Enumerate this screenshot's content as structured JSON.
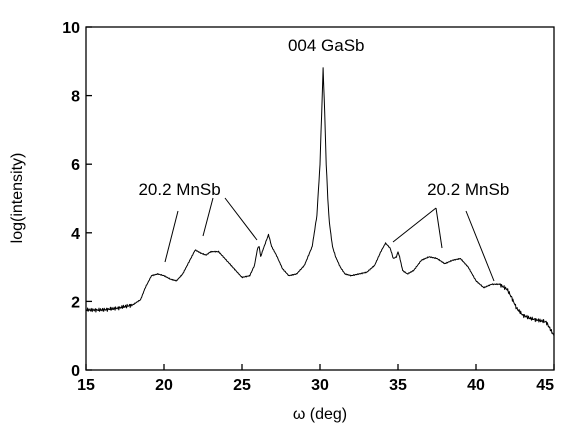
{
  "chart_data": {
    "type": "line",
    "title": "",
    "xlabel": "ω (deg)",
    "ylabel": "log(intensity)",
    "xlim": [
      15,
      45
    ],
    "ylim": [
      0,
      10
    ],
    "xticks": [
      15,
      20,
      25,
      30,
      35,
      40,
      45
    ],
    "yticks": [
      0,
      2,
      4,
      6,
      8,
      10
    ],
    "grid": false,
    "legend": "none",
    "series": [
      {
        "color": "#000000",
        "x": [
          15.0,
          16.0,
          17.0,
          18.0,
          18.5,
          18.8,
          19.2,
          19.6,
          20.0,
          20.4,
          20.8,
          21.2,
          21.6,
          22.0,
          22.4,
          22.7,
          23.0,
          23.5,
          24.0,
          24.5,
          25.0,
          25.5,
          25.8,
          26.0,
          26.1,
          26.2,
          26.3,
          26.5,
          26.7,
          26.9,
          27.2,
          27.6,
          28.0,
          28.5,
          29.0,
          29.5,
          29.8,
          30.0,
          30.2,
          30.3,
          30.4,
          30.5,
          30.6,
          30.8,
          31.0,
          31.3,
          31.6,
          32.0,
          32.5,
          33.0,
          33.5,
          33.9,
          34.2,
          34.5,
          34.7,
          34.9,
          35.0,
          35.1,
          35.3,
          35.6,
          36.0,
          36.5,
          37.0,
          37.5,
          38.0,
          38.5,
          39.0,
          39.5,
          40.0,
          40.5,
          41.0,
          41.5,
          42.0,
          42.3,
          42.6,
          43.0,
          43.5,
          44.0,
          44.5,
          45.0
        ],
        "values": [
          1.75,
          1.75,
          1.8,
          1.9,
          2.05,
          2.4,
          2.75,
          2.8,
          2.75,
          2.65,
          2.6,
          2.8,
          3.15,
          3.5,
          3.4,
          3.35,
          3.45,
          3.45,
          3.2,
          2.95,
          2.7,
          2.75,
          3.05,
          3.55,
          3.6,
          3.3,
          3.45,
          3.7,
          3.95,
          3.6,
          3.35,
          2.95,
          2.75,
          2.8,
          3.05,
          3.6,
          4.5,
          6.0,
          8.8,
          7.5,
          6.0,
          5.0,
          4.3,
          3.6,
          3.3,
          3.0,
          2.8,
          2.75,
          2.8,
          2.85,
          3.05,
          3.45,
          3.7,
          3.55,
          3.25,
          3.3,
          3.45,
          3.3,
          2.9,
          2.8,
          2.9,
          3.2,
          3.3,
          3.25,
          3.1,
          3.2,
          3.25,
          3.0,
          2.6,
          2.4,
          2.5,
          2.5,
          2.35,
          2.1,
          1.8,
          1.6,
          1.5,
          1.45,
          1.4,
          1.0
        ]
      }
    ],
    "annotations": [
      {
        "text": "004 GaSb",
        "x": 30.4,
        "y": 9.3
      },
      {
        "text": "20.2 MnSb",
        "x": 21.0,
        "y": 5.1
      },
      {
        "text": "20.2 MnSb",
        "x": 39.5,
        "y": 5.1
      }
    ]
  }
}
